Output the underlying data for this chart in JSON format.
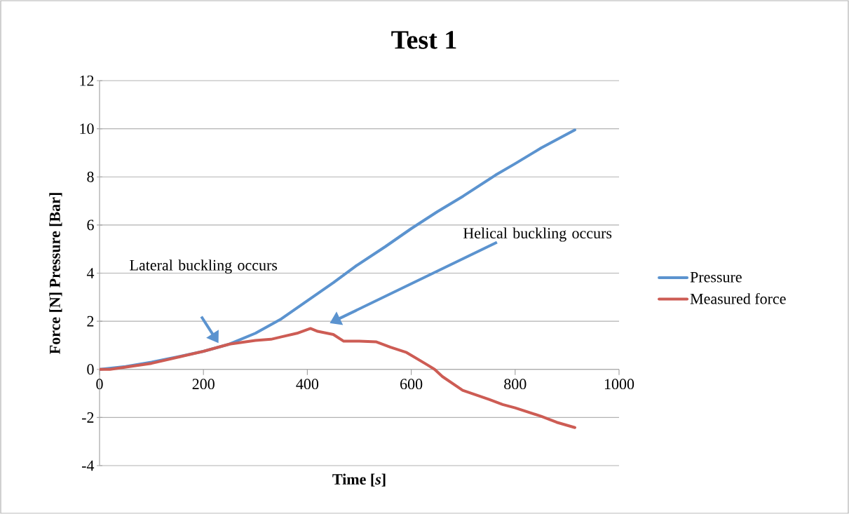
{
  "chart_data": {
    "type": "line",
    "title": "Test 1",
    "xlabel": "Time [*s*]",
    "ylabel": "Force [N] Pressure [Bar]",
    "xlim": [
      0,
      1000
    ],
    "xticks": [
      0,
      200,
      400,
      600,
      800,
      1000
    ],
    "ylim": [
      -4,
      12
    ],
    "yticks": [
      -4,
      -2,
      0,
      2,
      4,
      6,
      8,
      10,
      12
    ],
    "grid": "y",
    "legend": "right",
    "marker": "none",
    "line_style": "solid",
    "series": [
      {
        "name": "Pressure",
        "color": "#5b93cf",
        "x": [
          0,
          50,
          100,
          150,
          200,
          250,
          300,
          350,
          400,
          450,
          493,
          550,
          600,
          650,
          700,
          762,
          800,
          850,
          915
        ],
        "values": [
          0,
          0.12,
          0.3,
          0.52,
          0.75,
          1.05,
          1.5,
          2.1,
          2.85,
          3.6,
          4.29,
          5.1,
          5.85,
          6.55,
          7.2,
          8.07,
          8.55,
          9.2,
          9.95
        ]
      },
      {
        "name": "Measured force",
        "color": "#cd5c54",
        "x": [
          0,
          20,
          100,
          200,
          250,
          300,
          330,
          350,
          380,
          406,
          420,
          450,
          470,
          500,
          533,
          560,
          591,
          630,
          645,
          660,
          699,
          750,
          776,
          800,
          850,
          880,
          915
        ],
        "values": [
          0,
          0,
          0.25,
          0.75,
          1.05,
          1.2,
          1.25,
          1.35,
          1.5,
          1.7,
          1.58,
          1.45,
          1.17,
          1.17,
          1.14,
          0.92,
          0.7,
          0.2,
          0,
          -0.3,
          -0.87,
          -1.25,
          -1.46,
          -1.6,
          -1.95,
          -2.2,
          -2.42
        ]
      }
    ],
    "annotations": [
      "Lateral buckling occurs",
      "Helical buckling occurs"
    ]
  }
}
